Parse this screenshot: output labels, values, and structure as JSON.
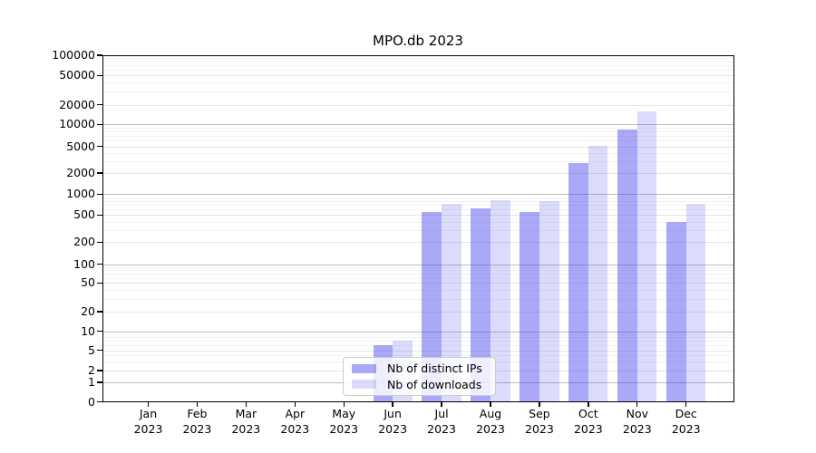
{
  "chart_data": {
    "type": "bar",
    "title": "MPO.db 2023",
    "categories": [
      "Jan 2023",
      "Feb 2023",
      "Mar 2023",
      "Apr 2023",
      "May 2023",
      "Jun 2023",
      "Jul 2023",
      "Aug 2023",
      "Sep 2023",
      "Oct 2023",
      "Nov 2023",
      "Dec 2023"
    ],
    "series": [
      {
        "name": "Nb of distinct IPs",
        "color": "rgba(64,64,239,0.45)",
        "values": [
          0,
          0,
          0,
          0,
          0,
          6,
          550,
          620,
          560,
          2800,
          8400,
          400
        ]
      },
      {
        "name": "Nb of downloads",
        "color": "rgba(64,64,239,0.19)",
        "values": [
          0,
          0,
          0,
          0,
          0,
          7,
          720,
          810,
          790,
          5100,
          16000,
          730
        ]
      }
    ],
    "y_axis": {
      "scale": "symlog",
      "ticks": [
        0,
        1,
        2,
        5,
        10,
        20,
        50,
        100,
        200,
        500,
        1000,
        2000,
        5000,
        10000,
        20000,
        50000,
        100000
      ],
      "range": [
        0,
        100000
      ]
    },
    "x_axis": {
      "tick_label_lines": 2
    },
    "grid": "horizontal major + minor",
    "legend_position": "lower center inside plot",
    "colors": {
      "grid_decade": "#bdbdbd",
      "grid_labeled": "#e5e5e5",
      "grid_minor": "#f2f2f2",
      "axis": "#000000",
      "legend_border": "#cccccc"
    }
  }
}
